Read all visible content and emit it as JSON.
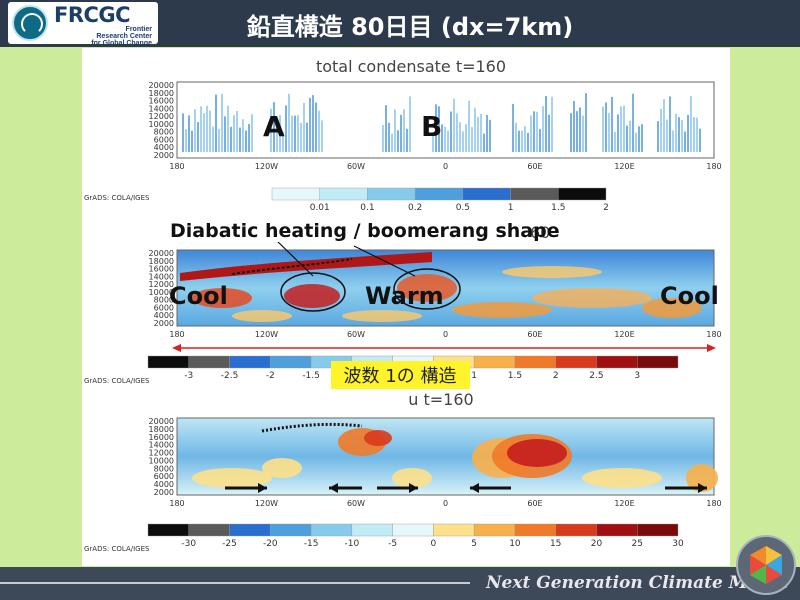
{
  "header": {
    "logo_text": "FRCGC",
    "logo_sub": [
      "Frontier",
      "Research Center",
      "for Global Change"
    ],
    "title": "鉛直構造 80日目 (dx=7km)"
  },
  "footer": {
    "text": "Next Generation Climate Model"
  },
  "chart_data": [
    {
      "type": "heatmap",
      "title": "total condensate t=160",
      "x_ticks": [
        "180",
        "120W",
        "60W",
        "0",
        "60E",
        "120E",
        "180"
      ],
      "y_ticks": [
        "20000",
        "18000",
        "16000",
        "14000",
        "12000",
        "10000",
        "8000",
        "6000",
        "4000",
        "2000"
      ],
      "colorbar": {
        "levels": [
          "0.01",
          "0.1",
          "0.2",
          "0.5",
          "1",
          "1.5",
          "2"
        ],
        "colors": [
          "#e6f7fb",
          "#c2ecf5",
          "#86cbec",
          "#4f9fdc",
          "#2a6fcf",
          "#5a5a5a",
          "#0c0c0c"
        ]
      },
      "source": "GrADS: COLA/IGES",
      "annotations": [
        "A",
        "B"
      ]
    },
    {
      "type": "heatmap",
      "title_partial": "60",
      "x_ticks": [
        "180",
        "120W",
        "60W",
        "0",
        "60E",
        "120E",
        "180"
      ],
      "y_ticks": [
        "20000",
        "18000",
        "16000",
        "14000",
        "12000",
        "10000",
        "8000",
        "6000",
        "4000",
        "2000"
      ],
      "colorbar": {
        "levels": [
          "-3",
          "-2.5",
          "-2",
          "-1.5",
          "",
          "",
          "",
          "1",
          "1.5",
          "2",
          "2.5",
          "3"
        ],
        "colors": [
          "#0c0c0c",
          "#5a5a5a",
          "#2a6fcf",
          "#4f9fdc",
          "#86cbec",
          "#c2ecf5",
          "#e6f7fb",
          "#fde08a",
          "#f8b04a",
          "#f07a28",
          "#d83a1c",
          "#a01010",
          "#7a0a0a"
        ]
      },
      "source": "GrADS: COLA/IGES",
      "annotations": [
        "Diabatic heating / boomerang shape",
        "Cool",
        "Warm",
        "Cool",
        "波数 1の 構造"
      ]
    },
    {
      "type": "heatmap",
      "title": "u t=160",
      "x_ticks": [
        "180",
        "120W",
        "60W",
        "0",
        "60E",
        "120E",
        "180"
      ],
      "y_ticks": [
        "20000",
        "18000",
        "16000",
        "14000",
        "12000",
        "10000",
        "8000",
        "6000",
        "4000",
        "2000"
      ],
      "colorbar": {
        "levels": [
          "-30",
          "-25",
          "-20",
          "-15",
          "-10",
          "-5",
          "0",
          "5",
          "10",
          "15",
          "20",
          "25",
          "30"
        ],
        "colors": [
          "#0c0c0c",
          "#5a5a5a",
          "#2a6fcf",
          "#4f9fdc",
          "#86cbec",
          "#c2ecf5",
          "#e6f7fb",
          "#fde08a",
          "#f8b04a",
          "#f07a28",
          "#d83a1c",
          "#a01010",
          "#7a0a0a"
        ]
      },
      "source": "GrADS: COLA/IGES",
      "wind_arrows": [
        "east",
        "west",
        "east",
        "west",
        "east"
      ]
    }
  ]
}
